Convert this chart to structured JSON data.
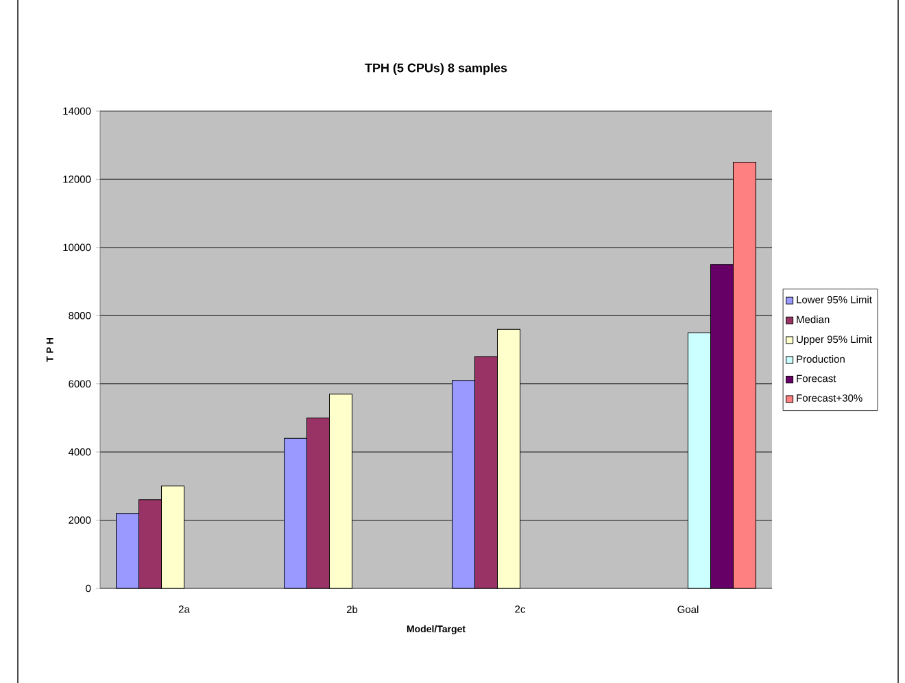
{
  "chart_data": {
    "type": "bar",
    "title": "TPH (5 CPUs) 8 samples",
    "xlabel": "Model/Target",
    "ylabel": "T P H",
    "categories": [
      "2a",
      "2b",
      "2c",
      "Goal"
    ],
    "series": [
      {
        "name": "Lower 95% Limit",
        "color": "#9999ff",
        "values": [
          2200,
          4400,
          6100,
          null
        ]
      },
      {
        "name": "Median",
        "color": "#993366",
        "values": [
          2600,
          5000,
          6800,
          null
        ]
      },
      {
        "name": "Upper 95% Limit",
        "color": "#ffffcc",
        "values": [
          3000,
          5700,
          7600,
          null
        ]
      },
      {
        "name": "Production",
        "color": "#ccffff",
        "values": [
          null,
          null,
          null,
          7500
        ]
      },
      {
        "name": "Forecast",
        "color": "#660066",
        "values": [
          null,
          null,
          null,
          9500
        ]
      },
      {
        "name": "Forecast+30%",
        "color": "#ff8080",
        "values": [
          null,
          null,
          null,
          12500
        ]
      }
    ],
    "ylim": [
      0,
      14000
    ],
    "yticks": [
      0,
      2000,
      4000,
      6000,
      8000,
      10000,
      12000,
      14000
    ],
    "grid": "y",
    "legend": "right"
  }
}
